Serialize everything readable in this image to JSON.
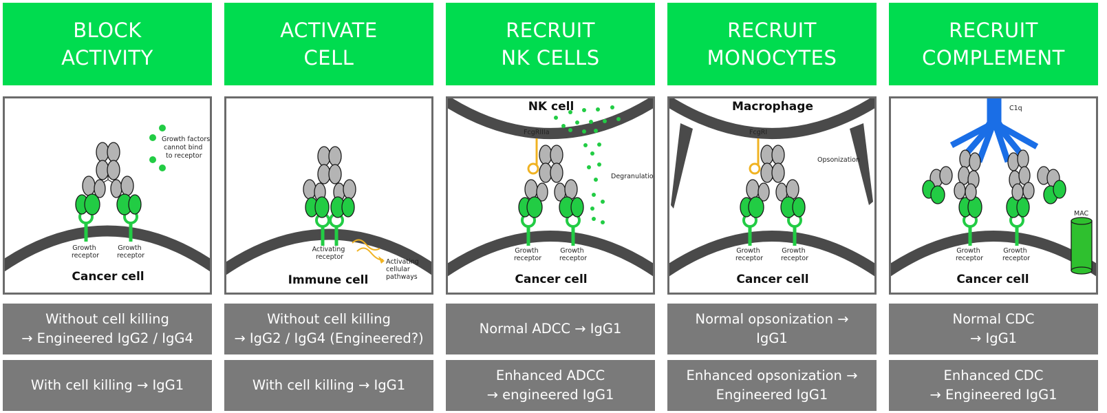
{
  "columns": [
    {
      "header": [
        "BLOCK",
        "ACTIVITY"
      ],
      "cell_label": "Cancer cell",
      "receptor_labels": [
        [
          "Growth",
          "receptor"
        ],
        [
          "Growth",
          "receptor"
        ]
      ],
      "annotation": [
        "Growth factors",
        "cannot bind",
        "to receptor"
      ],
      "box1": [
        "Without cell killing",
        "→ Engineered IgG2 / IgG4"
      ],
      "box2": [
        "With cell killing → IgG1"
      ]
    },
    {
      "header": [
        "ACTIVATE",
        "CELL"
      ],
      "cell_label": "Immune cell",
      "receptor_labels": [
        [
          "Activating",
          "receptor"
        ]
      ],
      "annotation": [
        "Activating",
        "cellular",
        "pathways"
      ],
      "box1": [
        "Without cell killing",
        "→ IgG2 / IgG4 (Engineered?)"
      ],
      "box2": [
        "With cell killing → IgG1"
      ]
    },
    {
      "header": [
        "RECRUIT",
        "NK CELLS"
      ],
      "top_cell_label": "NK cell",
      "fc_receptor": "FcgRIIIa",
      "annotation": [
        "Degranulation"
      ],
      "cell_label": "Cancer cell",
      "receptor_labels": [
        [
          "Growth",
          "receptor"
        ],
        [
          "Growth",
          "receptor"
        ]
      ],
      "box1": [
        "Normal ADCC → IgG1"
      ],
      "box2": [
        "Enhanced ADCC",
        "→ engineered IgG1"
      ]
    },
    {
      "header": [
        "RECRUIT",
        "MONOCYTES"
      ],
      "top_cell_label": "Macrophage",
      "fc_receptor": "FcgRI",
      "annotation": [
        "Opsonization"
      ],
      "cell_label": "Cancer cell",
      "receptor_labels": [
        [
          "Growth",
          "receptor"
        ],
        [
          "Growth",
          "receptor"
        ]
      ],
      "box1": [
        "Normal opsonization →",
        "IgG1"
      ],
      "box2": [
        "Enhanced opsonization →",
        "Engineered IgG1"
      ]
    },
    {
      "header": [
        "RECRUIT",
        "COMPLEMENT"
      ],
      "complement_label": "C1q",
      "mac_label": "MAC",
      "cell_label": "Cancer cell",
      "receptor_labels": [
        [
          "Growth",
          "receptor"
        ],
        [
          "Growth",
          "receptor"
        ]
      ],
      "box1": [
        "Normal CDC",
        "→ IgG1"
      ],
      "box2": [
        "Enhanced CDC",
        "→ Engineered IgG1"
      ]
    }
  ],
  "colors": {
    "header_green": "#00dc4f",
    "fab_green": "#22cc44",
    "fc_gray": "#b4b4b4",
    "membrane_gray": "#4a4a4a",
    "box_gray": "#7a7a7a",
    "fc_receptor_yellow": "#f0b323",
    "c1q_blue": "#1a6ee6",
    "mac_green": "#2fc02f"
  }
}
